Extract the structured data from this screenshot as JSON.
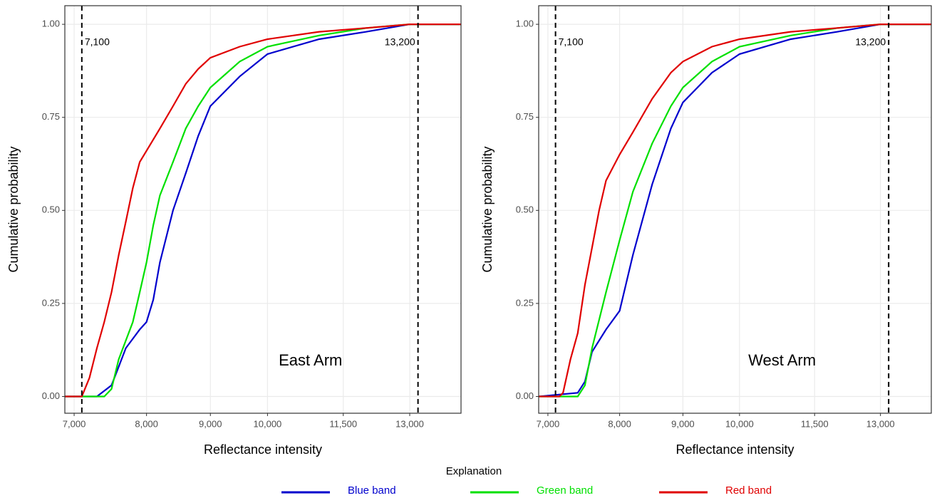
{
  "chart_data": [
    {
      "type": "line",
      "panel_label": "East Arm",
      "xlabel": "Reflectance intensity",
      "ylabel": "Cumulative probability",
      "xscale": "log",
      "xlim": [
        6881,
        14290
      ],
      "ylim": [
        -0.045,
        1.05
      ],
      "grid": true,
      "xticks": [
        {
          "value": 7000,
          "label": "7,000"
        },
        {
          "value": 8000,
          "label": "8,000"
        },
        {
          "value": 9000,
          "label": "9,000"
        },
        {
          "value": 10000,
          "label": "10,000"
        },
        {
          "value": 11500,
          "label": "11,500"
        },
        {
          "value": 13000,
          "label": "13,000"
        }
      ],
      "yticks": [
        {
          "value": 0,
          "label": "0.00"
        },
        {
          "value": 0.25,
          "label": "0.25"
        },
        {
          "value": 0.5,
          "label": "0.50"
        },
        {
          "value": 0.75,
          "label": "0.75"
        },
        {
          "value": 1,
          "label": "1.00"
        }
      ],
      "vlines": [
        {
          "value": 7100,
          "label": "7,100"
        },
        {
          "value": 13200,
          "label": "13,200"
        }
      ],
      "series": [
        {
          "name": "Blue band",
          "color": "#0000cd",
          "x": [
            6881,
            7300,
            7500,
            7600,
            7700,
            7900,
            8000,
            8100,
            8200,
            8400,
            8600,
            8800,
            9000,
            9500,
            10000,
            11000,
            12000,
            13000,
            14290
          ],
          "values": [
            0,
            0,
            0.03,
            0.08,
            0.13,
            0.18,
            0.2,
            0.26,
            0.36,
            0.5,
            0.6,
            0.7,
            0.78,
            0.86,
            0.92,
            0.96,
            0.98,
            1,
            1
          ]
        },
        {
          "name": "Green band",
          "color": "#00e000",
          "x": [
            6881,
            7400,
            7500,
            7600,
            7800,
            7900,
            8000,
            8100,
            8200,
            8400,
            8600,
            8800,
            9000,
            9500,
            10000,
            11000,
            12000,
            13000,
            14290
          ],
          "values": [
            0,
            0,
            0.02,
            0.1,
            0.2,
            0.28,
            0.36,
            0.46,
            0.54,
            0.63,
            0.72,
            0.78,
            0.83,
            0.9,
            0.94,
            0.97,
            0.99,
            1,
            1
          ]
        },
        {
          "name": "Red band",
          "color": "#e00000",
          "x": [
            6881,
            7100,
            7200,
            7300,
            7400,
            7500,
            7600,
            7700,
            7800,
            7900,
            8000,
            8200,
            8400,
            8600,
            8800,
            9000,
            9500,
            10000,
            11000,
            12000,
            13000,
            14290
          ],
          "values": [
            0,
            0,
            0.05,
            0.13,
            0.2,
            0.28,
            0.38,
            0.47,
            0.56,
            0.63,
            0.66,
            0.72,
            0.78,
            0.84,
            0.88,
            0.91,
            0.94,
            0.96,
            0.98,
            0.99,
            1,
            1
          ]
        }
      ]
    },
    {
      "type": "line",
      "panel_label": "West Arm",
      "xlabel": "Reflectance intensity",
      "ylabel": "Cumulative probability",
      "xscale": "log",
      "xlim": [
        6881,
        14290
      ],
      "ylim": [
        -0.045,
        1.05
      ],
      "grid": true,
      "xticks": [
        {
          "value": 7000,
          "label": "7,000"
        },
        {
          "value": 8000,
          "label": "8,000"
        },
        {
          "value": 9000,
          "label": "9,000"
        },
        {
          "value": 10000,
          "label": "10,000"
        },
        {
          "value": 11500,
          "label": "11,500"
        },
        {
          "value": 13000,
          "label": "13,000"
        }
      ],
      "yticks": [
        {
          "value": 0,
          "label": "0.00"
        },
        {
          "value": 0.25,
          "label": "0.25"
        },
        {
          "value": 0.5,
          "label": "0.50"
        },
        {
          "value": 0.75,
          "label": "0.75"
        },
        {
          "value": 1,
          "label": "1.00"
        }
      ],
      "vlines": [
        {
          "value": 7100,
          "label": "7,100"
        },
        {
          "value": 13200,
          "label": "13,200"
        }
      ],
      "series": [
        {
          "name": "Blue band",
          "color": "#0000cd",
          "x": [
            6881,
            7400,
            7500,
            7600,
            7800,
            8000,
            8200,
            8500,
            8800,
            9000,
            9500,
            10000,
            11000,
            12000,
            13000,
            14290
          ],
          "values": [
            0,
            0.01,
            0.04,
            0.12,
            0.18,
            0.23,
            0.38,
            0.57,
            0.72,
            0.79,
            0.87,
            0.92,
            0.96,
            0.98,
            1,
            1
          ]
        },
        {
          "name": "Green band",
          "color": "#00e000",
          "x": [
            6881,
            7400,
            7500,
            7600,
            7800,
            8000,
            8200,
            8500,
            8800,
            9000,
            9500,
            10000,
            11000,
            12000,
            13000,
            14290
          ],
          "values": [
            0,
            0,
            0.03,
            0.13,
            0.28,
            0.42,
            0.55,
            0.68,
            0.78,
            0.83,
            0.9,
            0.94,
            0.97,
            0.99,
            1,
            1
          ]
        },
        {
          "name": "Red band",
          "color": "#e00000",
          "x": [
            6881,
            7150,
            7200,
            7300,
            7400,
            7500,
            7600,
            7700,
            7800,
            8000,
            8200,
            8500,
            8800,
            9000,
            9500,
            10000,
            11000,
            12000,
            13000,
            14290
          ],
          "values": [
            0,
            0,
            0.01,
            0.1,
            0.17,
            0.3,
            0.4,
            0.5,
            0.58,
            0.65,
            0.71,
            0.8,
            0.87,
            0.9,
            0.94,
            0.96,
            0.98,
            0.99,
            1,
            1
          ]
        }
      ]
    }
  ],
  "legend": {
    "title": "Explanation"
  }
}
